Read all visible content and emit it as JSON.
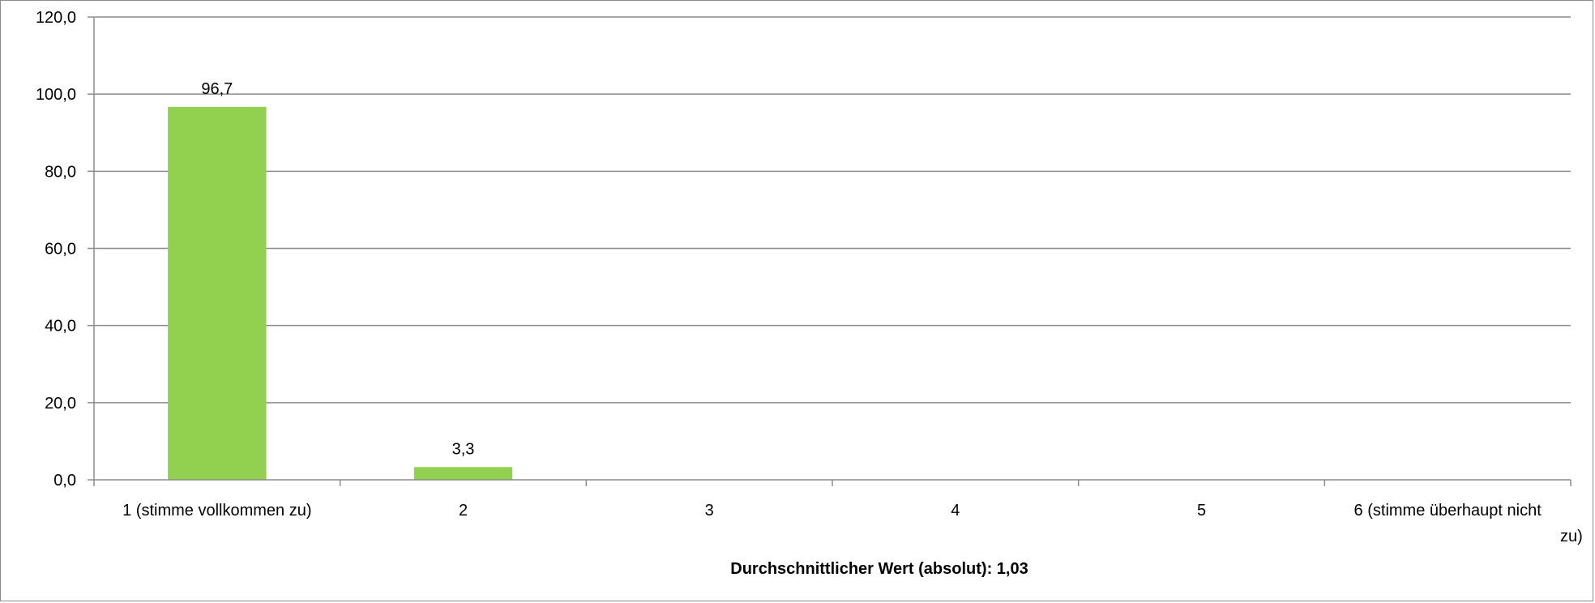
{
  "chart_data": {
    "type": "bar",
    "categories": [
      "1 (stimme vollkommen zu)",
      "2",
      "3",
      "4",
      "5",
      "6 (stimme überhaupt nicht zu)"
    ],
    "values": [
      96.7,
      3.3,
      0,
      0,
      0,
      0
    ],
    "data_labels": [
      "96,7",
      "3,3",
      "",
      "",
      "",
      ""
    ],
    "title": "",
    "xlabel": "Durchschnittlicher Wert (absolut): 1,03",
    "ylabel": "",
    "ylim": [
      0,
      120
    ],
    "yticks": [
      "0,0",
      "20,0",
      "40,0",
      "60,0",
      "80,0",
      "100,0",
      "120,0"
    ],
    "ytick_values": [
      0,
      20,
      40,
      60,
      80,
      100,
      120
    ],
    "grid": true,
    "legend": "none",
    "bar_color": "#92d050",
    "grid_color": "#8c8c8c"
  }
}
